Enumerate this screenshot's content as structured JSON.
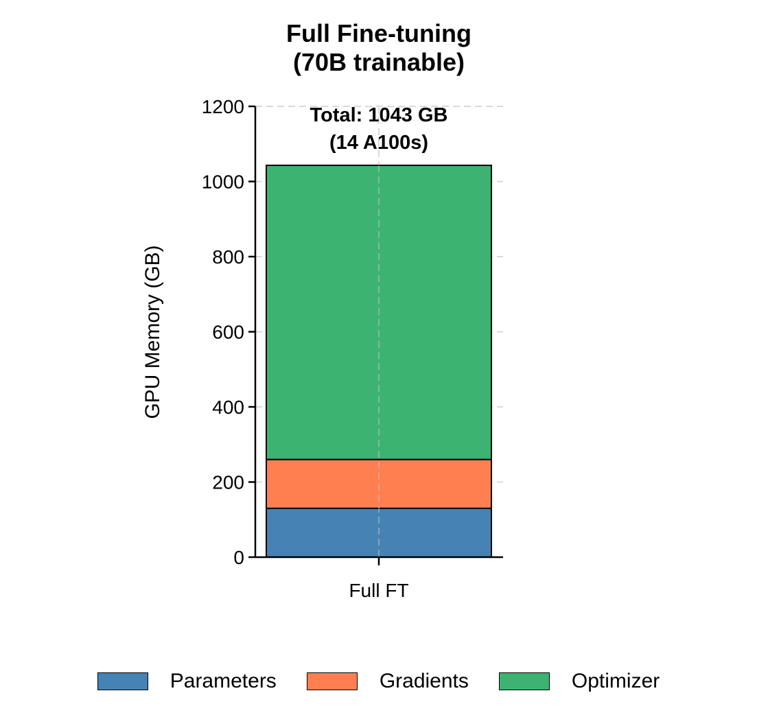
{
  "chart_data": {
    "type": "bar",
    "stacked": true,
    "title": "Full Fine-tuning\n(70B trainable)",
    "title_lines": [
      "Full Fine-tuning",
      "(70B trainable)"
    ],
    "xlabel": "",
    "ylabel": "GPU Memory (GB)",
    "ylim": [
      0,
      1200
    ],
    "yticks": [
      0,
      200,
      400,
      600,
      800,
      1000,
      1200
    ],
    "categories": [
      "Full FT"
    ],
    "series": [
      {
        "name": "Parameters",
        "values": [
          130
        ],
        "color": "#4682B4"
      },
      {
        "name": "Gradients",
        "values": [
          130
        ],
        "color": "#FF7F50"
      },
      {
        "name": "Optimizer",
        "values": [
          783
        ],
        "color": "#3CB371"
      }
    ],
    "annotation_lines": [
      "Total: 1043 GB",
      "(14 A100s)"
    ],
    "grid": true,
    "legend_position": "bottom"
  },
  "legend": [
    "Parameters",
    "Gradients",
    "Optimizer"
  ]
}
